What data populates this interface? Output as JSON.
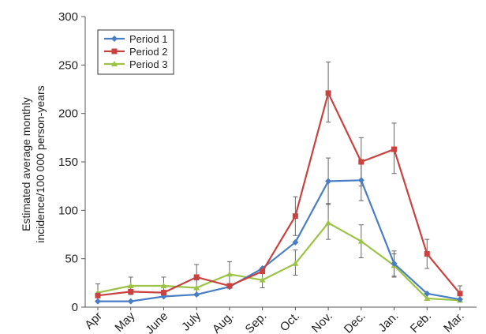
{
  "chart_data": {
    "type": "line",
    "title": "",
    "xlabel": "",
    "ylabel_line1": "Estimated average monthly",
    "ylabel_line2": "incidence/100 000 person-years",
    "ylim": [
      0,
      300
    ],
    "yticks": [
      0,
      50,
      100,
      150,
      200,
      250,
      300
    ],
    "categories": [
      "Apr",
      "May",
      "June",
      "July",
      "Aug.",
      "Sep.",
      "Oct.",
      "Nov.",
      "Dec.",
      "Jan.",
      "Feb.",
      "Mar."
    ],
    "legend_position": "top-left",
    "grid": false,
    "series": [
      {
        "name": "Period 1",
        "color": "#4a7ec4",
        "marker": "diamond",
        "values": [
          6,
          6,
          11,
          13,
          21,
          40,
          67,
          130,
          131,
          45,
          14,
          8
        ],
        "err_lo": [
          0,
          0,
          0,
          0,
          0,
          0,
          0,
          24,
          21,
          13,
          0,
          0
        ],
        "err_hi": [
          0,
          0,
          0,
          0,
          0,
          0,
          0,
          24,
          21,
          13,
          0,
          0
        ]
      },
      {
        "name": "Period 2",
        "color": "#c8423f",
        "marker": "square",
        "values": [
          12,
          16,
          15,
          31,
          22,
          37,
          94,
          221,
          150,
          163,
          55,
          14
        ],
        "err_lo": [
          0,
          0,
          0,
          0,
          0,
          0,
          20,
          30,
          25,
          25,
          15,
          8
        ],
        "err_hi": [
          0,
          0,
          0,
          13,
          0,
          0,
          20,
          32,
          25,
          27,
          15,
          8
        ]
      },
      {
        "name": "Period 3",
        "color": "#9bc346",
        "marker": "triangle",
        "values": [
          15,
          22,
          22,
          20,
          34,
          28,
          45,
          87,
          68,
          43,
          9,
          7
        ],
        "err_lo": [
          9,
          9,
          9,
          8,
          13,
          8,
          12,
          17,
          17,
          12,
          0,
          0
        ],
        "err_hi": [
          9,
          9,
          9,
          8,
          13,
          8,
          14,
          20,
          17,
          12,
          0,
          0
        ]
      }
    ]
  }
}
